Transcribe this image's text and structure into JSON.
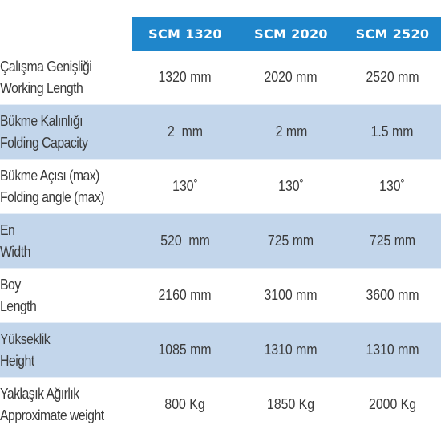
{
  "header": {
    "models": [
      "SCM 1320",
      "SCM 2020",
      "SCM 2520"
    ]
  },
  "rows": [
    {
      "label_tr": "Çalışma Genişliği",
      "label_en": "Working Length",
      "values": [
        "1320 mm",
        "2020 mm",
        "2520 mm"
      ]
    },
    {
      "label_tr": "Bükme Kalınlığı",
      "label_en": "Folding Capacity",
      "values": [
        "2  mm",
        "2 mm",
        "1.5 mm"
      ]
    },
    {
      "label_tr": "Bükme Açısı (max)",
      "label_en": "Folding angle (max)",
      "values": [
        "130˚",
        "130˚",
        "130˚"
      ]
    },
    {
      "label_tr": "En",
      "label_en": "Width",
      "values": [
        "520  mm",
        "725 mm",
        "725 mm"
      ]
    },
    {
      "label_tr": "Boy",
      "label_en": "Length",
      "values": [
        "2160 mm",
        "3100 mm",
        "3600 mm"
      ]
    },
    {
      "label_tr": "Yükseklik",
      "label_en": "Height",
      "values": [
        "1085 mm",
        "1310 mm",
        "1310 mm"
      ]
    },
    {
      "label_tr": "Yaklaşık Ağırlık",
      "label_en": "Approximate weight",
      "values": [
        "800 Kg",
        "1850 Kg",
        "2000 Kg"
      ]
    }
  ],
  "colors": {
    "header_bg": "#1f86cb",
    "header_text": "#ffffff",
    "stripe_bg": "#c3d6eb",
    "text": "#3a3a3a"
  }
}
